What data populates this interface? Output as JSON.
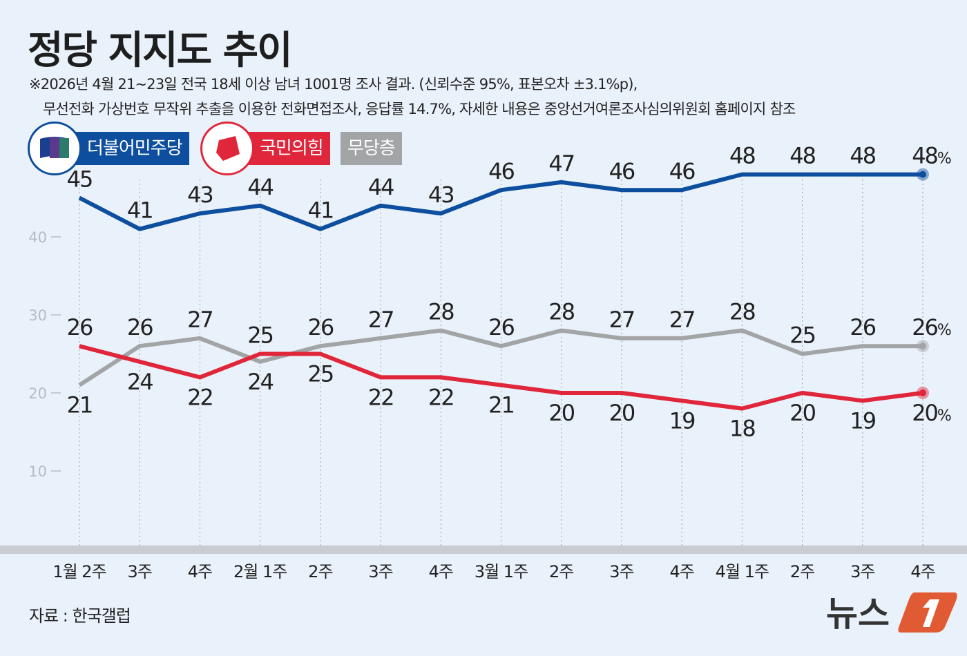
{
  "title": "정당 지지도 추이",
  "subtitle_line1": "※2026년 4월 21~23일 전국 18세 이상 남녀 1001명 조사 결과. (신뢰수준 95%, 표본오차 ±3.1%p),",
  "subtitle_line2": "무선전화 가상번호 무작위 추출을 이용한 전화면접조사, 응답률 14.7%, 자세한 내용은 중앙선거여론조사심의위원회 홈페이지 참조",
  "source": "자료 : 한국갤럽",
  "logo_text": "뉴스1",
  "chart_data": {
    "type": "line",
    "categories": [
      "1월 2주",
      "3주",
      "4주",
      "2월 1주",
      "2주",
      "3주",
      "4주",
      "3월 1주",
      "2주",
      "3주",
      "4주",
      "4월 1주",
      "2주",
      "3주",
      "4주"
    ],
    "ylim": [
      0,
      50
    ],
    "yticks": [
      10,
      20,
      30,
      40
    ],
    "grid": "vertical-dotted",
    "legend": "top-left",
    "unit": "%",
    "series": [
      {
        "name": "더불어민주당",
        "color": "#0d4f9e",
        "values": [
          45,
          41,
          43,
          44,
          41,
          44,
          43,
          46,
          47,
          46,
          46,
          48,
          48,
          48,
          48
        ]
      },
      {
        "name": "국민의힘",
        "color": "#e0263a",
        "values": [
          26,
          24,
          22,
          25,
          25,
          22,
          22,
          21,
          20,
          20,
          19,
          18,
          20,
          19,
          20
        ]
      },
      {
        "name": "무당층",
        "color": "#a3a4a6",
        "values": [
          21,
          26,
          27,
          24,
          26,
          27,
          28,
          26,
          28,
          27,
          27,
          28,
          25,
          26,
          26
        ]
      }
    ]
  }
}
